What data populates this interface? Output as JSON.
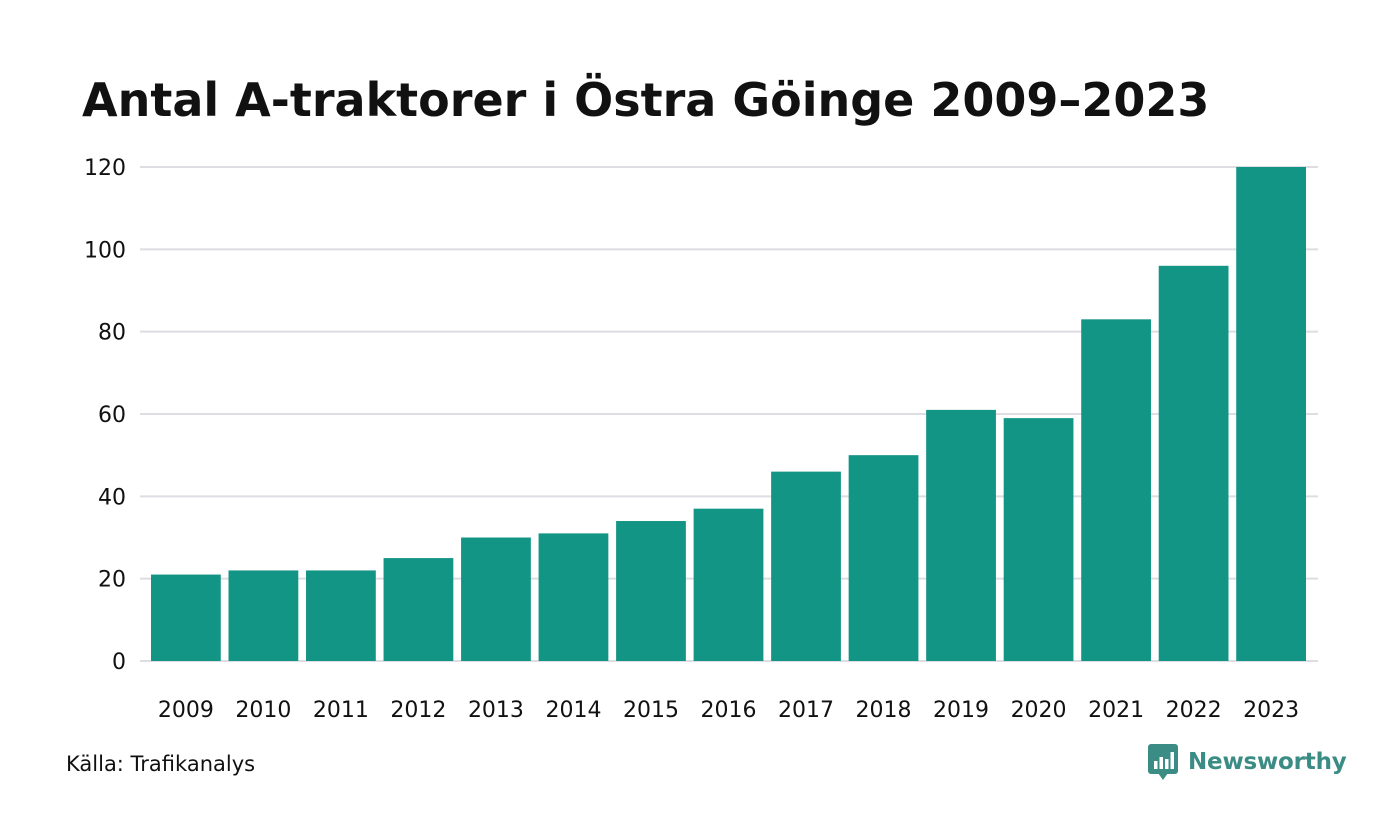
{
  "chart_data": {
    "type": "bar",
    "title": "Antal A-traktorer i Östra Göinge 2009–2023",
    "categories": [
      "2009",
      "2010",
      "2011",
      "2012",
      "2013",
      "2014",
      "2015",
      "2016",
      "2017",
      "2018",
      "2019",
      "2020",
      "2021",
      "2022",
      "2023"
    ],
    "values": [
      21,
      22,
      22,
      25,
      30,
      31,
      34,
      37,
      46,
      50,
      61,
      59,
      83,
      96,
      120
    ],
    "yticks": [
      0,
      20,
      40,
      60,
      80,
      100,
      120
    ],
    "ylim": [
      0,
      120
    ],
    "xlabel": "",
    "ylabel": "",
    "grid": true,
    "bar_color": "#139586",
    "grid_color": "#dddde3"
  },
  "footer": {
    "source": "Källa: Trafikanalys",
    "brand": "Newsworthy",
    "brand_color": "#3a8c84",
    "brand_icon": "newsworthy-chart-bubble-icon"
  }
}
